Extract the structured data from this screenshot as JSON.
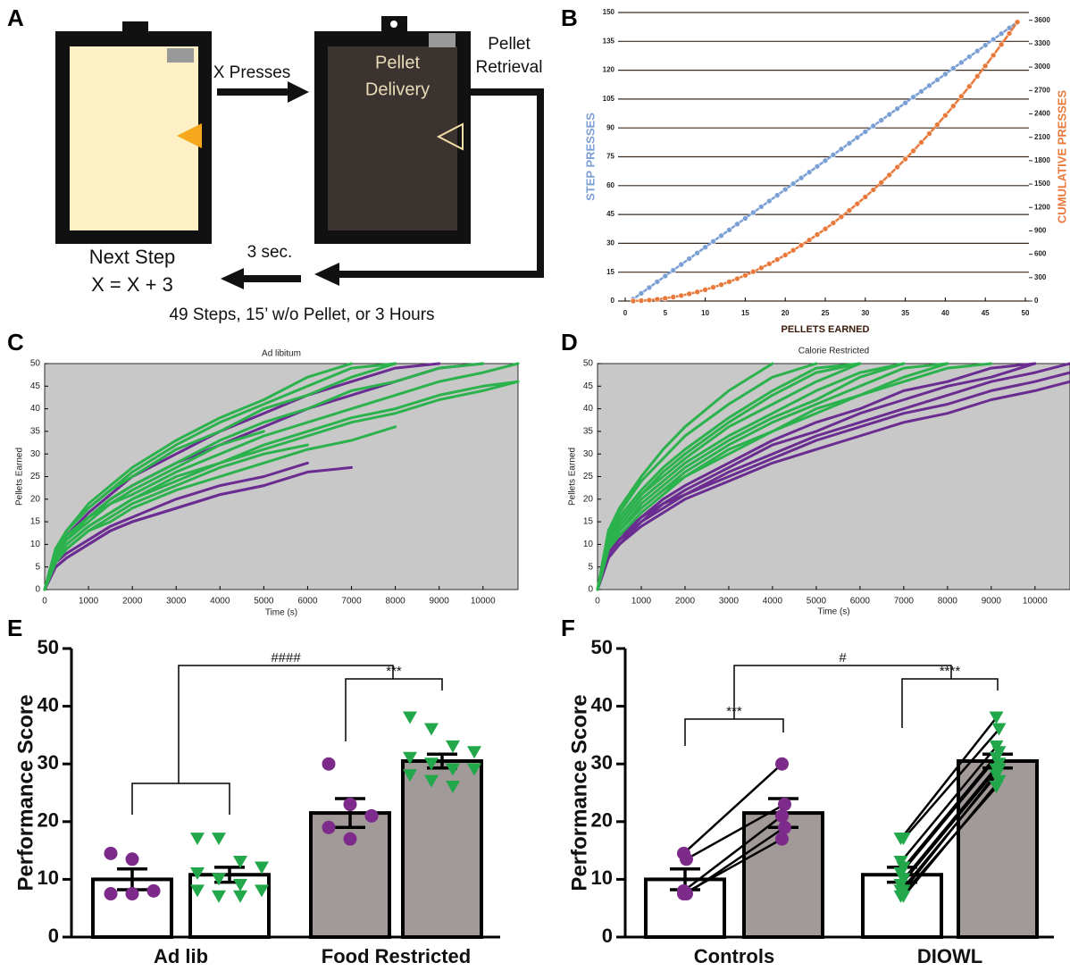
{
  "panels": [
    "A",
    "B",
    "C",
    "D",
    "E",
    "F"
  ],
  "diagram": {
    "x_presses": "X Presses",
    "pellet_delivery": [
      "Pellet",
      "Delivery"
    ],
    "pellet_retrieval": [
      "Pellet",
      "Retrieval"
    ],
    "three_sec": "3 sec.",
    "next_step": "Next Step",
    "formula": "X = X + 3",
    "end_condition": "49 Steps, 15’ w/o Pellet, or 3 Hours"
  },
  "chart_data": [
    {
      "type": "line",
      "xlabel": "PELLETS EARNED",
      "ylabel": "STEP PRESSES",
      "y2label": "CUMULATIVE PRESSES",
      "grid": true,
      "markers": true,
      "x": [
        1,
        2,
        3,
        4,
        5,
        6,
        7,
        8,
        9,
        10,
        11,
        12,
        13,
        14,
        15,
        16,
        17,
        18,
        19,
        20,
        21,
        22,
        23,
        24,
        25,
        26,
        27,
        28,
        29,
        30,
        31,
        32,
        33,
        34,
        35,
        36,
        37,
        38,
        39,
        40,
        41,
        42,
        43,
        44,
        45,
        46,
        47,
        48,
        49
      ],
      "xlim": [
        0,
        50
      ],
      "xticks": [
        0,
        5,
        10,
        15,
        20,
        25,
        30,
        35,
        40,
        45,
        50
      ],
      "ylim": [
        0,
        150
      ],
      "yticks": [
        0,
        15,
        30,
        45,
        60,
        75,
        90,
        105,
        120,
        135,
        150
      ],
      "y2lim": [
        0,
        3700
      ],
      "y2ticks": [
        0,
        300,
        600,
        900,
        1200,
        1500,
        1800,
        2100,
        2400,
        2700,
        3000,
        3300,
        3600
      ],
      "series": [
        {
          "color": "#7a9fd4",
          "values": [
            1,
            4,
            7,
            10,
            13,
            16,
            19,
            22,
            25,
            28,
            31,
            34,
            37,
            40,
            43,
            46,
            49,
            52,
            55,
            58,
            61,
            64,
            67,
            70,
            73,
            76,
            79,
            82,
            85,
            88,
            91,
            94,
            97,
            100,
            103,
            106,
            109,
            112,
            115,
            118,
            121,
            124,
            127,
            130,
            133,
            136,
            139,
            142,
            145
          ]
        },
        {
          "color": "#e8793a",
          "axis": "y2",
          "values": [
            1,
            5,
            12,
            22,
            35,
            51,
            70,
            92,
            117,
            145,
            176,
            210,
            247,
            287,
            330,
            376,
            425,
            477,
            532,
            590,
            651,
            715,
            782,
            852,
            925,
            1001,
            1080,
            1162,
            1247,
            1335,
            1426,
            1520,
            1617,
            1717,
            1820,
            1926,
            2035,
            2147,
            2262,
            2380,
            2501,
            2625,
            2752,
            2882,
            3015,
            3151,
            3290,
            3432,
            3577
          ]
        }
      ]
    },
    {
      "type": "line",
      "title": "Ad libitum",
      "xlabel": "Time (s)",
      "ylabel": "Pellets Earned",
      "background": "#c8c8c8",
      "x": [
        0,
        250,
        500,
        1000,
        1500,
        2000,
        3000,
        4000,
        5000,
        6000,
        7000,
        8000,
        9000,
        10000,
        10800
      ],
      "xlim": [
        0,
        10800
      ],
      "xticks": [
        0,
        1000,
        2000,
        3000,
        4000,
        5000,
        6000,
        7000,
        8000,
        9000,
        10000
      ],
      "ylim": [
        0,
        50
      ],
      "yticks": [
        0,
        5,
        10,
        15,
        20,
        25,
        30,
        35,
        40,
        45,
        50
      ],
      "series": [
        {
          "color": "#6a2c91",
          "values": [
            0,
            5,
            7,
            10,
            13,
            15,
            18,
            21,
            23,
            26,
            27,
            null,
            null,
            null,
            null
          ]
        },
        {
          "color": "#6a2c91",
          "values": [
            0,
            6,
            8,
            11,
            14,
            16,
            20,
            23,
            25,
            28,
            null,
            null,
            null,
            null,
            null
          ]
        },
        {
          "color": "#6a2c91",
          "values": [
            0,
            5,
            7,
            10,
            13,
            15,
            18,
            21,
            23,
            null,
            null,
            null,
            null,
            null,
            null
          ]
        },
        {
          "color": "#6a2c91",
          "values": [
            0,
            9,
            12,
            17,
            21,
            25,
            30,
            35,
            39,
            43,
            46,
            49,
            50,
            null,
            null
          ]
        },
        {
          "color": "#6a2c91",
          "values": [
            0,
            8,
            12,
            16,
            20,
            23,
            28,
            32,
            36,
            40,
            43,
            46,
            49,
            50,
            null
          ]
        },
        {
          "color": "#2bb24c",
          "values": [
            0,
            9,
            13,
            19,
            23,
            27,
            33,
            38,
            42,
            47,
            50,
            null,
            null,
            null,
            null
          ]
        },
        {
          "color": "#2bb24c",
          "values": [
            0,
            9,
            13,
            18,
            22,
            25,
            31,
            35,
            40,
            43,
            47,
            50,
            null,
            null,
            null
          ]
        },
        {
          "color": "#2bb24c",
          "values": [
            0,
            8,
            12,
            16,
            20,
            23,
            28,
            33,
            37,
            40,
            44,
            46,
            49,
            50,
            null
          ]
        },
        {
          "color": "#2bb24c",
          "values": [
            0,
            8,
            11,
            15,
            19,
            21,
            26,
            30,
            34,
            37,
            40,
            43,
            46,
            48,
            50
          ]
        },
        {
          "color": "#2bb24c",
          "values": [
            0,
            7,
            10,
            14,
            17,
            20,
            25,
            28,
            32,
            35,
            38,
            40,
            43,
            45,
            46
          ]
        },
        {
          "color": "#2bb24c",
          "values": [
            0,
            7,
            10,
            14,
            17,
            20,
            24,
            28,
            31,
            34,
            37,
            39,
            42,
            44,
            46
          ]
        },
        {
          "color": "#2bb24c",
          "values": [
            0,
            6,
            9,
            13,
            15,
            18,
            22,
            25,
            28,
            31,
            33,
            36,
            null,
            null,
            null
          ]
        },
        {
          "color": "#2bb24c",
          "values": [
            0,
            7,
            9,
            13,
            16,
            19,
            23,
            27,
            30,
            32,
            null,
            null,
            null,
            null,
            null
          ]
        },
        {
          "color": "#2bb24c",
          "values": [
            0,
            8,
            11,
            16,
            19,
            22,
            27,
            32,
            35,
            null,
            null,
            null,
            null,
            null,
            null
          ]
        },
        {
          "color": "#2bb24c",
          "values": [
            0,
            9,
            13,
            18,
            22,
            26,
            32,
            37,
            41,
            45,
            49,
            50,
            null,
            null,
            null
          ]
        }
      ]
    },
    {
      "type": "line",
      "title": "Calorie Restricted",
      "xlabel": "Time (s)",
      "ylabel": "Pellets Earned",
      "background": "#c8c8c8",
      "x": [
        0,
        250,
        500,
        1000,
        1500,
        2000,
        3000,
        4000,
        5000,
        6000,
        7000,
        8000,
        9000,
        10000,
        10800
      ],
      "xlim": [
        0,
        10800
      ],
      "xticks": [
        0,
        1000,
        2000,
        3000,
        4000,
        5000,
        6000,
        7000,
        8000,
        9000,
        10000
      ],
      "ylim": [
        0,
        50
      ],
      "yticks": [
        0,
        5,
        10,
        15,
        20,
        25,
        30,
        35,
        40,
        45,
        50
      ],
      "series": [
        {
          "color": "#6a2c91",
          "values": [
            0,
            7,
            10,
            15,
            18,
            21,
            25,
            29,
            33,
            36,
            39,
            41,
            44,
            46,
            48
          ]
        },
        {
          "color": "#6a2c91",
          "values": [
            0,
            8,
            11,
            15,
            19,
            21,
            26,
            30,
            34,
            37,
            40,
            43,
            46,
            48,
            50
          ]
        },
        {
          "color": "#6a2c91",
          "values": [
            0,
            8,
            11,
            16,
            19,
            22,
            27,
            32,
            35,
            39,
            42,
            45,
            47,
            50,
            null
          ]
        },
        {
          "color": "#6a2c91",
          "values": [
            0,
            7,
            10,
            14,
            17,
            20,
            24,
            28,
            31,
            34,
            37,
            39,
            42,
            44,
            46
          ]
        },
        {
          "color": "#6a2c91",
          "values": [
            0,
            8,
            12,
            16,
            20,
            23,
            28,
            33,
            37,
            40,
            44,
            46,
            49,
            50,
            null
          ]
        },
        {
          "color": "#2bb24c",
          "values": [
            0,
            13,
            18,
            25,
            31,
            36,
            44,
            50,
            null,
            null,
            null,
            null,
            null,
            null,
            null
          ]
        },
        {
          "color": "#2bb24c",
          "values": [
            0,
            12,
            17,
            24,
            29,
            34,
            41,
            47,
            50,
            null,
            null,
            null,
            null,
            null,
            null
          ]
        },
        {
          "color": "#2bb24c",
          "values": [
            0,
            11,
            16,
            22,
            27,
            31,
            38,
            44,
            49,
            50,
            null,
            null,
            null,
            null,
            null
          ]
        },
        {
          "color": "#2bb24c",
          "values": [
            0,
            11,
            15,
            21,
            26,
            30,
            37,
            43,
            48,
            50,
            null,
            null,
            null,
            null,
            null
          ]
        },
        {
          "color": "#2bb24c",
          "values": [
            0,
            10,
            15,
            21,
            25,
            29,
            36,
            41,
            46,
            50,
            null,
            null,
            null,
            null,
            null
          ]
        },
        {
          "color": "#2bb24c",
          "values": [
            0,
            10,
            14,
            20,
            24,
            28,
            34,
            39,
            44,
            48,
            50,
            null,
            null,
            null,
            null
          ]
        },
        {
          "color": "#2bb24c",
          "values": [
            0,
            9,
            13,
            19,
            23,
            27,
            33,
            38,
            42,
            47,
            50,
            null,
            null,
            null,
            null
          ]
        },
        {
          "color": "#2bb24c",
          "values": [
            0,
            9,
            13,
            18,
            22,
            26,
            32,
            37,
            41,
            45,
            49,
            50,
            null,
            null,
            null
          ]
        },
        {
          "color": "#2bb24c",
          "values": [
            0,
            9,
            13,
            18,
            22,
            25,
            31,
            35,
            40,
            43,
            47,
            50,
            null,
            null,
            null
          ]
        },
        {
          "color": "#2bb24c",
          "values": [
            0,
            9,
            12,
            17,
            21,
            25,
            30,
            35,
            39,
            43,
            46,
            49,
            50,
            null,
            null
          ]
        }
      ]
    },
    {
      "type": "bar",
      "ylabel": "Performance Score",
      "categories": [
        "Ad lib",
        "Food Restricted"
      ],
      "ylim": [
        0,
        50
      ],
      "yticks": [
        0,
        10,
        20,
        30,
        40,
        50
      ],
      "annotations": [
        "####",
        "***"
      ],
      "bars": [
        {
          "fill": "#ffffff",
          "marker": "circle",
          "point_color": "#7d2b8b",
          "value": 10,
          "error": 1.8,
          "points": [
            14.5,
            13.5,
            8,
            7.5,
            7.5
          ]
        },
        {
          "fill": "#ffffff",
          "marker": "triangle",
          "point_color": "#22a84a",
          "value": 10.8,
          "error": 1.3,
          "points": [
            17,
            17,
            13,
            12,
            11,
            10,
            9,
            8,
            8,
            7,
            7
          ]
        },
        {
          "fill": "#a29a98",
          "marker": "circle",
          "point_color": "#7d2b8b",
          "value": 21.5,
          "error": 2.5,
          "points": [
            30,
            23,
            21,
            19,
            17
          ]
        },
        {
          "fill": "#a29a98",
          "marker": "triangle",
          "point_color": "#22a84a",
          "value": 30.5,
          "error": 1.2,
          "points": [
            38,
            36,
            33,
            32,
            31,
            30,
            29,
            29,
            28,
            27,
            26
          ]
        }
      ]
    },
    {
      "type": "bar",
      "ylabel": "Performance Score",
      "categories": [
        "Controls",
        "DIOWL"
      ],
      "paired": true,
      "ylim": [
        0,
        50
      ],
      "yticks": [
        0,
        10,
        20,
        30,
        40,
        50
      ],
      "annotations": [
        "#",
        "***",
        "****"
      ],
      "bars": [
        {
          "fill": "#ffffff",
          "marker": "circle",
          "point_color": "#7d2b8b",
          "value": 10,
          "error": 1.8,
          "points": [
            14.5,
            13.5,
            8,
            7.5,
            7.5
          ]
        },
        {
          "fill": "#a29a98",
          "marker": "circle",
          "point_color": "#7d2b8b",
          "value": 21.5,
          "error": 2.5,
          "points": [
            30,
            23,
            21,
            19,
            17
          ]
        },
        {
          "fill": "#ffffff",
          "marker": "triangle",
          "point_color": "#22a84a",
          "value": 10.8,
          "error": 1.3,
          "points": [
            17,
            17,
            13,
            12,
            11,
            10,
            9,
            8,
            8,
            7,
            7
          ]
        },
        {
          "fill": "#a29a98",
          "marker": "triangle",
          "point_color": "#22a84a",
          "value": 30.5,
          "error": 1.2,
          "points": [
            38,
            36,
            33,
            32,
            31,
            30,
            29,
            29,
            28,
            27,
            26
          ]
        }
      ]
    }
  ]
}
